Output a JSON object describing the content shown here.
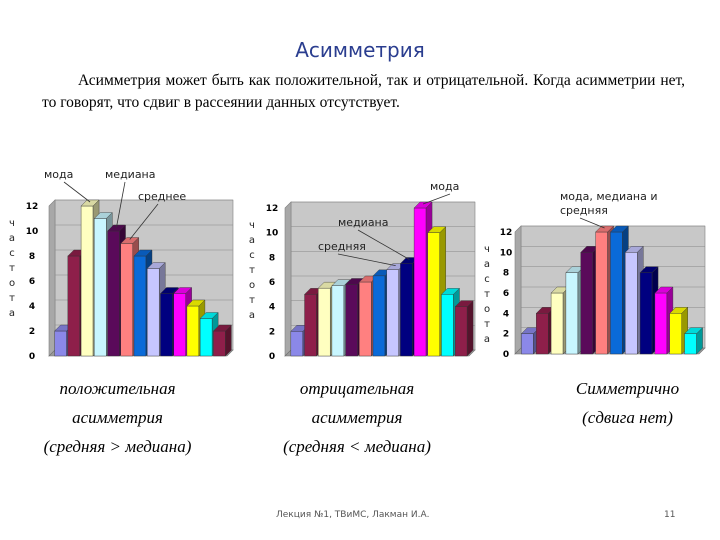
{
  "slide": {
    "title": "Асимметрия",
    "intro": "Асимметрия может быть как положительной, так и отрицательной. Когда асимметрии нет, то говорят, что сдвиг в рассеянии данных отсутствует.",
    "footer_left": "Лекция №1, ТВиМС, Лакман И.А.",
    "page_number": "11"
  },
  "captions": [
    {
      "line1": "положительная",
      "line2": "асимметрия",
      "line3": "(средняя > медиана)"
    },
    {
      "line1": "отрицательная",
      "line2": "асимметрия",
      "line3": "(средняя < медиана)"
    },
    {
      "line1": "Симметрично",
      "line2": "(сдвига нет)",
      "line3": ""
    }
  ],
  "colors": [
    "#8b88e8",
    "#8e1f4a",
    "#ffffc0",
    "#c8f6ff",
    "#5a0a5a",
    "#ff8080",
    "#0a6ad8",
    "#c6c6ff",
    "#000080",
    "#ff00ff",
    "#ffff00",
    "#00ffff"
  ],
  "chart_data": [
    {
      "type": "bar",
      "ylabel": "частота",
      "ylim": [
        0,
        12
      ],
      "yticks": [
        0,
        2,
        4,
        6,
        8,
        10,
        12
      ],
      "values": [
        2,
        8,
        12,
        11,
        10,
        9,
        8,
        7,
        5,
        5,
        4,
        3,
        2
      ],
      "color_index": [
        0,
        1,
        2,
        3,
        4,
        5,
        6,
        7,
        8,
        9,
        10,
        11,
        1
      ],
      "annotations": [
        {
          "text": "мода",
          "bar": 2
        },
        {
          "text": "медиана",
          "bar": 4
        },
        {
          "text": "среднее",
          "bar": 5
        }
      ]
    },
    {
      "type": "bar",
      "ylabel": "частота",
      "ylim": [
        0,
        12
      ],
      "yticks": [
        0,
        2,
        4,
        6,
        8,
        10,
        12
      ],
      "values": [
        2,
        5,
        5.5,
        5.7,
        5.8,
        6,
        6.5,
        7,
        7.5,
        12,
        10,
        5,
        4
      ],
      "color_index": [
        0,
        1,
        2,
        3,
        4,
        5,
        6,
        7,
        8,
        9,
        10,
        11,
        1
      ],
      "annotations": [
        {
          "text": "мода",
          "bar": 9
        },
        {
          "text": "медиана",
          "bar": 8
        },
        {
          "text": "средняя",
          "bar": 7
        }
      ]
    },
    {
      "type": "bar",
      "ylabel": "частота",
      "ylim": [
        0,
        12
      ],
      "yticks": [
        0,
        2,
        4,
        6,
        8,
        10,
        12
      ],
      "values": [
        2,
        4,
        6,
        8,
        10,
        12,
        12,
        10,
        8,
        6,
        4,
        2
      ],
      "color_index": [
        0,
        1,
        2,
        3,
        4,
        5,
        6,
        7,
        8,
        9,
        10,
        11
      ],
      "annotations": [
        {
          "text": "мода, медиана и средняя",
          "bar": 5
        }
      ]
    }
  ]
}
